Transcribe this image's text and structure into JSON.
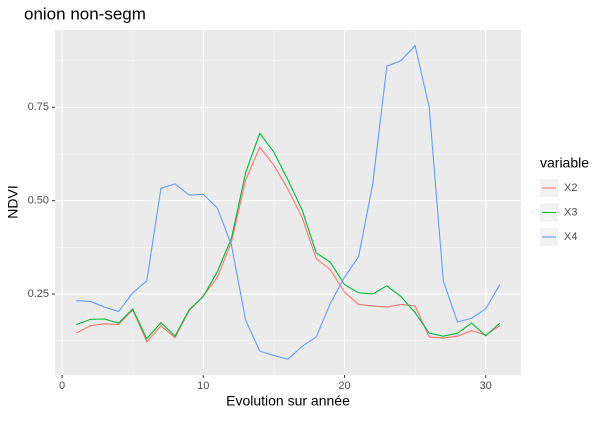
{
  "chart_data": {
    "type": "line",
    "title": "onion non-segm",
    "x_label": "Evolution sur année",
    "y_label": "NDVI",
    "x": [
      1,
      2,
      3,
      4,
      5,
      6,
      7,
      8,
      9,
      10,
      11,
      12,
      13,
      14,
      15,
      16,
      17,
      18,
      19,
      20,
      21,
      22,
      23,
      24,
      25,
      26,
      27,
      28,
      29,
      30,
      31
    ],
    "series": [
      {
        "name": "X2",
        "color": "#F8766D",
        "values": [
          0.145,
          0.165,
          0.17,
          0.168,
          0.208,
          0.122,
          0.165,
          0.133,
          0.205,
          0.245,
          0.295,
          0.39,
          0.555,
          0.643,
          0.595,
          0.53,
          0.455,
          0.345,
          0.315,
          0.255,
          0.222,
          0.218,
          0.215,
          0.222,
          0.218,
          0.135,
          0.132,
          0.137,
          0.152,
          0.14,
          0.165
        ]
      },
      {
        "name": "X3",
        "color": "#00BA38",
        "values": [
          0.168,
          0.182,
          0.183,
          0.172,
          0.21,
          0.13,
          0.173,
          0.137,
          0.208,
          0.243,
          0.31,
          0.4,
          0.575,
          0.68,
          0.63,
          0.555,
          0.475,
          0.36,
          0.335,
          0.275,
          0.253,
          0.25,
          0.272,
          0.243,
          0.2,
          0.145,
          0.137,
          0.145,
          0.172,
          0.138,
          0.172
        ]
      },
      {
        "name": "X4",
        "color": "#619CFF",
        "values": [
          0.232,
          0.23,
          0.215,
          0.203,
          0.253,
          0.285,
          0.533,
          0.545,
          0.515,
          0.517,
          0.48,
          0.38,
          0.18,
          0.097,
          0.085,
          0.075,
          0.11,
          0.135,
          0.225,
          0.295,
          0.35,
          0.545,
          0.86,
          0.875,
          0.915,
          0.75,
          0.285,
          0.175,
          0.185,
          0.21,
          0.275
        ]
      }
    ],
    "legend_title": "variable",
    "xlim": [
      -0.5,
      32.5
    ],
    "xticks": [
      0,
      10,
      20,
      30
    ],
    "ylim": [
      0.033,
      0.957
    ],
    "yticks": [
      0.25,
      {
        "value": 0.5,
        "label": "0.50"
      },
      0.75
    ],
    "grid": true
  }
}
